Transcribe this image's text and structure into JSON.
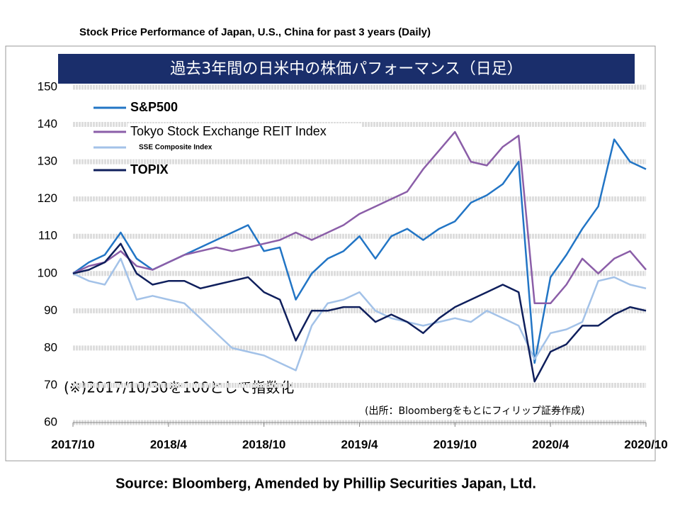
{
  "chart_data": {
    "type": "line",
    "title": "Stock Price Performance of Japan, U.S., China for past 3 years (Daily)",
    "banner": "過去3年間の日米中の株価パフォーマンス（日足）",
    "annotations": [
      "(※)2017/10/30を100として指数化",
      "(出所：Bloombergをもとにフィリップ証券作成)"
    ],
    "source": "Source: Bloomberg, Amended by Phillip Securities Japan, Ltd.",
    "x": [
      "2017/10",
      "2017/11",
      "2017/12",
      "2018/1",
      "2018/2",
      "2018/3",
      "2018/4",
      "2018/5",
      "2018/6",
      "2018/7",
      "2018/8",
      "2018/9",
      "2018/10",
      "2018/11",
      "2018/12",
      "2019/1",
      "2019/2",
      "2019/3",
      "2019/4",
      "2019/5",
      "2019/6",
      "2019/7",
      "2019/8",
      "2019/9",
      "2019/10",
      "2019/11",
      "2019/12",
      "2020/1",
      "2020/2",
      "2020/3",
      "2020/4",
      "2020/5",
      "2020/6",
      "2020/7",
      "2020/8",
      "2020/9",
      "2020/10"
    ],
    "xticks": [
      "2017/10",
      "2018/4",
      "2018/10",
      "2019/4",
      "2019/10",
      "2020/4",
      "2020/10"
    ],
    "ylim": [
      60,
      150
    ],
    "yticks": [
      60,
      70,
      80,
      90,
      100,
      110,
      120,
      130,
      140,
      150
    ],
    "grid": true,
    "legend": "upper left",
    "series": [
      {
        "name": "S&P500",
        "color": "#2275c5",
        "values": [
          100,
          103,
          105,
          111,
          104,
          101,
          103,
          105,
          107,
          109,
          111,
          113,
          106,
          107,
          93,
          100,
          104,
          106,
          110,
          104,
          110,
          112,
          109,
          112,
          114,
          119,
          121,
          124,
          130,
          76,
          99,
          105,
          112,
          118,
          136,
          130,
          128
        ]
      },
      {
        "name": "Tokyo Stock Exchange REIT Index",
        "color": "#8b5ea8",
        "values": [
          100,
          102,
          103,
          106,
          102,
          101,
          103,
          105,
          106,
          107,
          106,
          107,
          108,
          109,
          111,
          109,
          111,
          113,
          116,
          118,
          120,
          122,
          128,
          133,
          138,
          130,
          129,
          134,
          137,
          92,
          92,
          97,
          104,
          100,
          104,
          106,
          101
        ]
      },
      {
        "name": "SSE Composite Index",
        "color": "#a3c2e8",
        "values": [
          100,
          98,
          97,
          104,
          93,
          94,
          93,
          92,
          88,
          84,
          80,
          79,
          78,
          76,
          74,
          86,
          92,
          93,
          95,
          90,
          88,
          87,
          86,
          87,
          88,
          87,
          90,
          88,
          86,
          77,
          84,
          85,
          87,
          98,
          99,
          97,
          96
        ]
      },
      {
        "name": "TOPIX",
        "color": "#0f1f5c",
        "values": [
          100,
          101,
          103,
          108,
          100,
          97,
          98,
          98,
          96,
          97,
          98,
          99,
          95,
          93,
          82,
          90,
          90,
          91,
          91,
          87,
          89,
          87,
          84,
          88,
          91,
          93,
          95,
          97,
          95,
          71,
          79,
          81,
          86,
          86,
          89,
          91,
          90
        ]
      }
    ]
  }
}
